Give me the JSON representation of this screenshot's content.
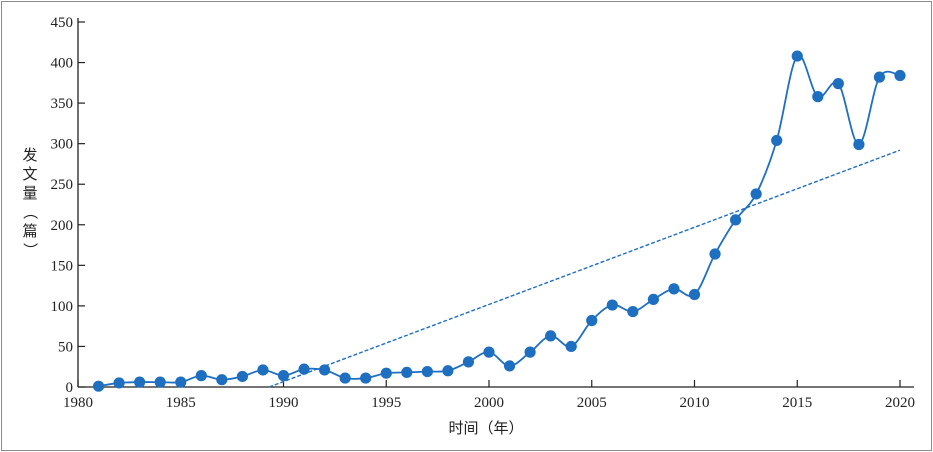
{
  "chart_data": {
    "type": "line",
    "title": "",
    "xlabel": "时间（年）",
    "ylabel": "发文量（篇）",
    "xlim": [
      1980,
      2020
    ],
    "ylim": [
      0,
      450
    ],
    "xticks": [
      1980,
      1985,
      1990,
      1995,
      2000,
      2005,
      2010,
      2015,
      2020
    ],
    "yticks": [
      0,
      50,
      100,
      150,
      200,
      250,
      300,
      350,
      400,
      450
    ],
    "grid": false,
    "legend": "none",
    "series": [
      {
        "color": "#1f6fc1",
        "marker": "circle",
        "smooth": true,
        "x": [
          1981,
          1982,
          1983,
          1984,
          1985,
          1986,
          1987,
          1988,
          1989,
          1990,
          1991,
          1992,
          1993,
          1994,
          1995,
          1996,
          1997,
          1998,
          1999,
          2000,
          2001,
          2002,
          2003,
          2004,
          2005,
          2006,
          2007,
          2008,
          2009,
          2010,
          2011,
          2012,
          2013,
          2014,
          2015,
          2016,
          2017,
          2018,
          2019,
          2020
        ],
        "y": [
          1,
          5,
          6,
          6,
          6,
          14,
          9,
          13,
          21,
          14,
          22,
          21,
          11,
          11,
          17,
          18,
          19,
          20,
          31,
          43,
          26,
          43,
          63,
          50,
          82,
          101,
          93,
          108,
          121,
          114,
          164,
          206,
          238,
          304,
          408,
          358,
          374,
          299,
          382,
          384
        ]
      }
    ],
    "trendline": {
      "color": "#1f6fc1",
      "style": "dashed",
      "x": [
        1989.3,
        2020
      ],
      "y": [
        0,
        292
      ]
    }
  }
}
